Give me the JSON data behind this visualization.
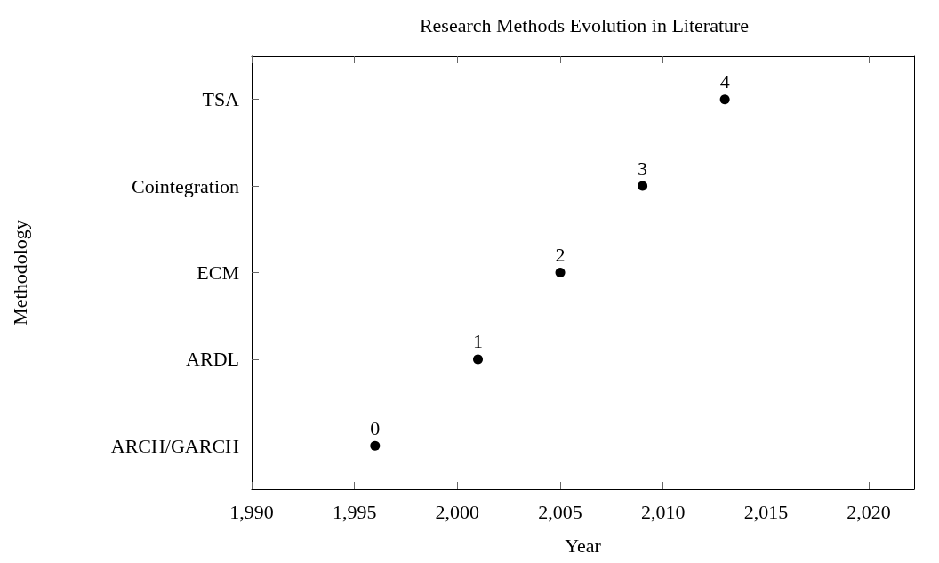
{
  "chart_data": {
    "type": "scatter",
    "orientation": "horizontal",
    "title": "Research Methods Evolution in Literature",
    "xlabel": "Year",
    "ylabel": "Methodology",
    "categories": [
      "TSA",
      "Cointegration",
      "ECM",
      "ARDL",
      "ARCH/GARCH"
    ],
    "series": [
      {
        "color": "#000000",
        "values": [
          2013,
          2009,
          2005,
          2001,
          1996
        ]
      }
    ],
    "annotations": [
      {
        "text": "4",
        "x": 2013,
        "y": "TSA"
      },
      {
        "text": "3",
        "x": 2009,
        "y": "Cointegration"
      },
      {
        "text": "2",
        "x": 2005,
        "y": "ECM"
      },
      {
        "text": "1",
        "x": 2001,
        "y": "ARDL"
      },
      {
        "text": "0",
        "x": 1996,
        "y": "ARCH/GARCH"
      }
    ],
    "xlim": [
      1990,
      2022.2
    ],
    "xticks": [
      {
        "value": 1990,
        "label": "1,990"
      },
      {
        "value": 1995,
        "label": "1,995"
      },
      {
        "value": 2000,
        "label": "2,000"
      },
      {
        "value": 2005,
        "label": "2,005"
      },
      {
        "value": 2010,
        "label": "2,010"
      },
      {
        "value": 2015,
        "label": "2,015"
      },
      {
        "value": 2020,
        "label": "2,020"
      }
    ],
    "grid": false,
    "marker": "circle"
  }
}
